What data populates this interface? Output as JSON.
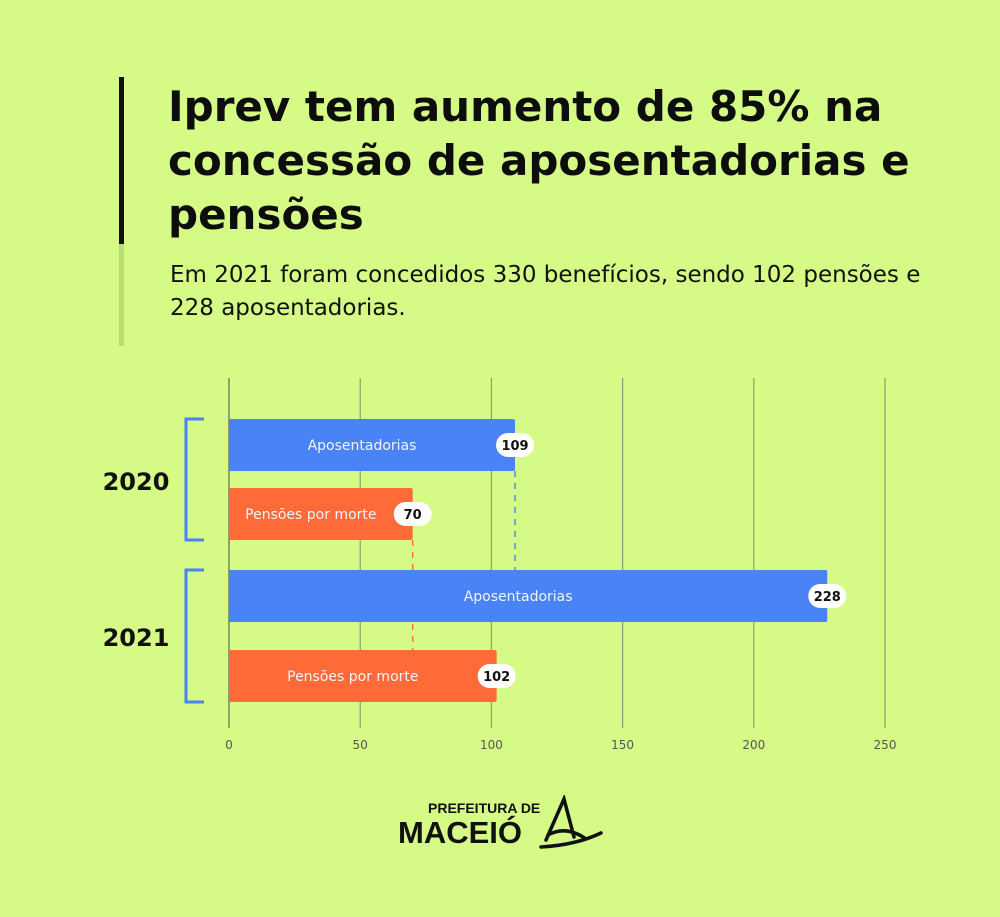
{
  "header": {
    "title": "Iprev tem aumento de 85% na concessão de aposentadorias e pensões",
    "subtitle": "Em 2021 foram concedidos 330 benefícios, sendo 102 pensões e 228 aposentadorias."
  },
  "chart_data": {
    "type": "bar",
    "orientation": "horizontal",
    "title": "",
    "xlabel": "",
    "ylabel": "",
    "xlim": [
      0,
      250
    ],
    "xticks": [
      0,
      50,
      100,
      150,
      200,
      250
    ],
    "grid": true,
    "groups": [
      "2020",
      "2021"
    ],
    "bars": [
      {
        "group": "2020",
        "label": "Aposentadorias",
        "value": 109,
        "color": "#4a83f6"
      },
      {
        "group": "2020",
        "label": "Pensões por morte",
        "value": 70,
        "color": "#fe6a38"
      },
      {
        "group": "2021",
        "label": "Aposentadorias",
        "value": 228,
        "color": "#4a83f6"
      },
      {
        "group": "2021",
        "label": "Pensões por morte",
        "value": 102,
        "color": "#fe6a38"
      }
    ]
  },
  "logo": {
    "line1": "PREFEITURA DE",
    "line2": "MACEIÓ"
  },
  "colors": {
    "background": "#d5fa86",
    "bracket": "#4a83f6"
  }
}
